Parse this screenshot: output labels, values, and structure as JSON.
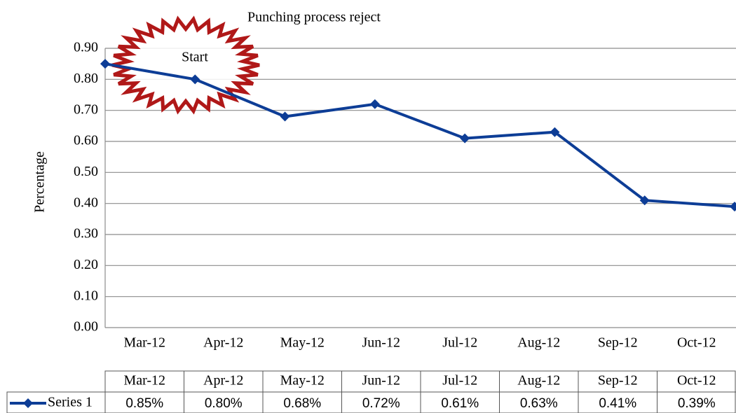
{
  "chart_data": {
    "type": "line",
    "title": "Punching process reject",
    "ylabel": "Percentage",
    "annotation": "Start",
    "categories": [
      "Mar-12",
      "Apr-12",
      "May-12",
      "Jun-12",
      "Jul-12",
      "Aug-12",
      "Sep-12",
      "Oct-12"
    ],
    "series": [
      {
        "name": "Series 1",
        "color": "#0d3d96",
        "values": [
          0.85,
          0.8,
          0.68,
          0.72,
          0.61,
          0.63,
          0.41,
          0.39
        ],
        "value_labels": [
          "0.85%",
          "0.80%",
          "0.68%",
          "0.72%",
          "0.61%",
          "0.63%",
          "0.41%",
          "0.39%"
        ]
      }
    ],
    "ylim": [
      0,
      0.9
    ],
    "yticks": [
      {
        "value": 0,
        "label": "0.00"
      },
      {
        "value": 0.1,
        "label": "0.10"
      },
      {
        "value": 0.2,
        "label": "0.20"
      },
      {
        "value": 0.3,
        "label": "0.30"
      },
      {
        "value": 0.4,
        "label": "0.40"
      },
      {
        "value": 0.5,
        "label": "0.50"
      },
      {
        "value": 0.6,
        "label": "0.60"
      },
      {
        "value": 0.7,
        "label": "0.70"
      },
      {
        "value": 0.8,
        "label": "0.80"
      },
      {
        "value": 0.9,
        "label": "0.90"
      }
    ],
    "grid": true
  }
}
